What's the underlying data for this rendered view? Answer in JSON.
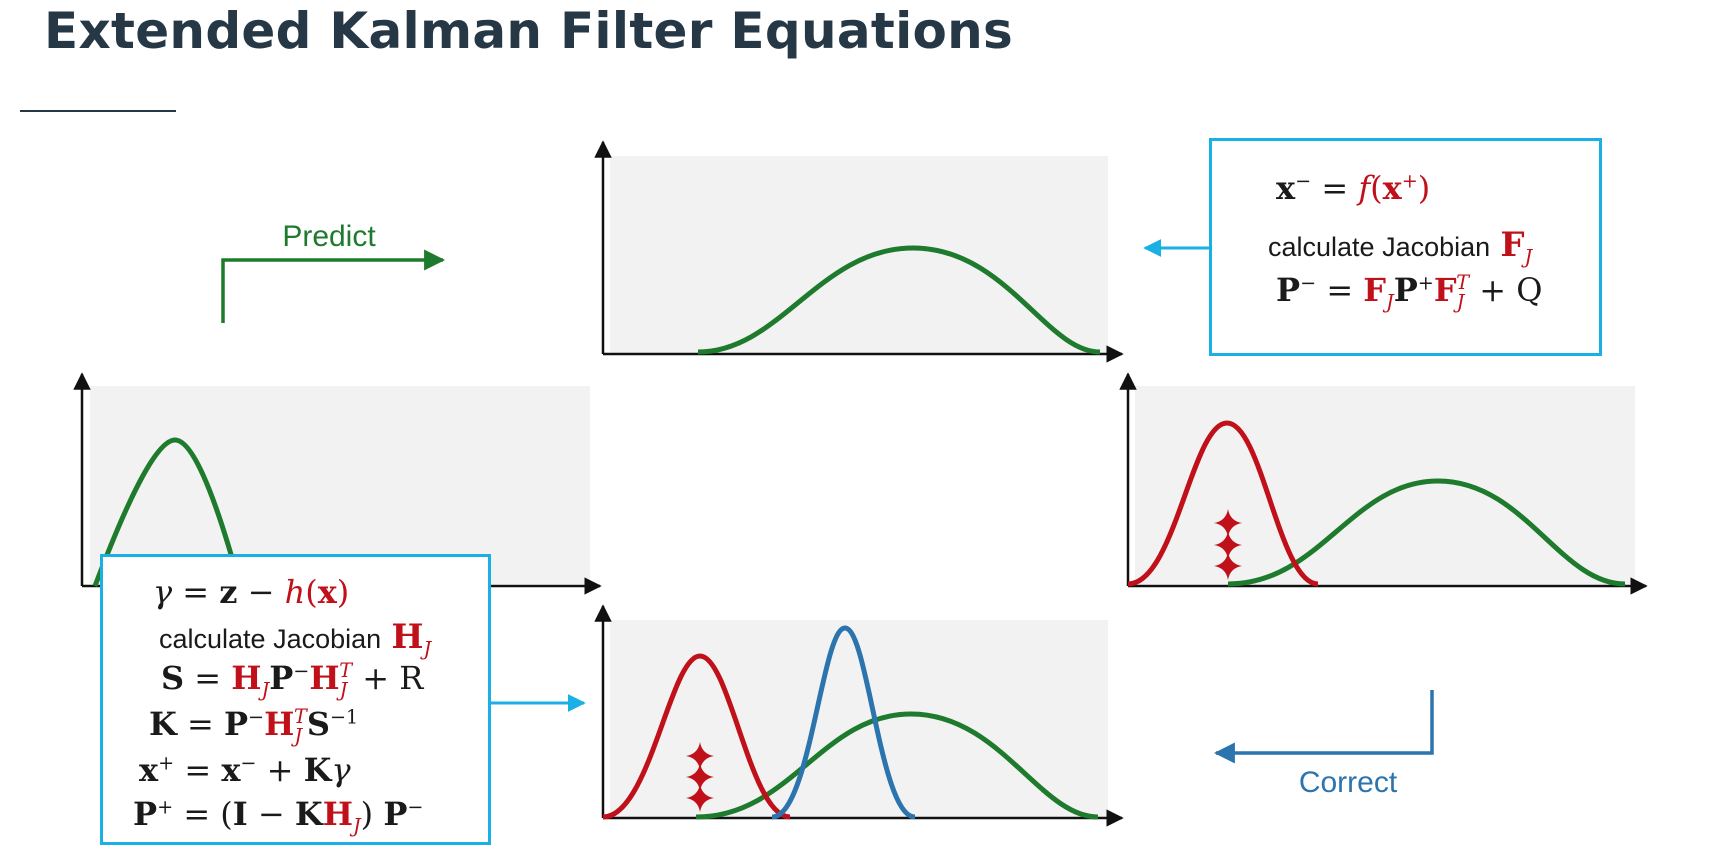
{
  "title": "Extended Kalman Filter Equations",
  "labels": {
    "predict": "Predict",
    "correct": "Correct"
  },
  "predict_box": {
    "eq1": "x⁻ = f(x⁺)",
    "jacobian_label": "calculate Jacobian",
    "jacobian_symbol": "F_J",
    "eq3": "P⁻ = F_J P⁺ F_J^T + Q"
  },
  "correct_box": {
    "eq1": "γ = z − h(x)",
    "jacobian_label": "calculate Jacobian",
    "jacobian_symbol": "H_J",
    "eq3": "S = H_J P⁻ H_J^T + R",
    "eq4": "K = P⁻ H_J^T S⁻¹",
    "eq5": "x⁺ = x⁻ + Kγ",
    "eq6": "P⁺ = (I − K H_J) P⁻"
  },
  "colors": {
    "title": "#263746",
    "box_border": "#1ab0e6",
    "prediction_curve": "#1e7a2c",
    "measurement_curve": "#c0101a",
    "corrected_curve": "#2b74ad",
    "plot_background": "#f2f2f2",
    "predict_label": "#1e7a2c",
    "correct_label": "#2b74ad",
    "math_accent": "#c0101a"
  },
  "icons": {
    "measurement_marker": "sparkle-star-icon",
    "flow_arrow": "arrow-icon"
  }
}
